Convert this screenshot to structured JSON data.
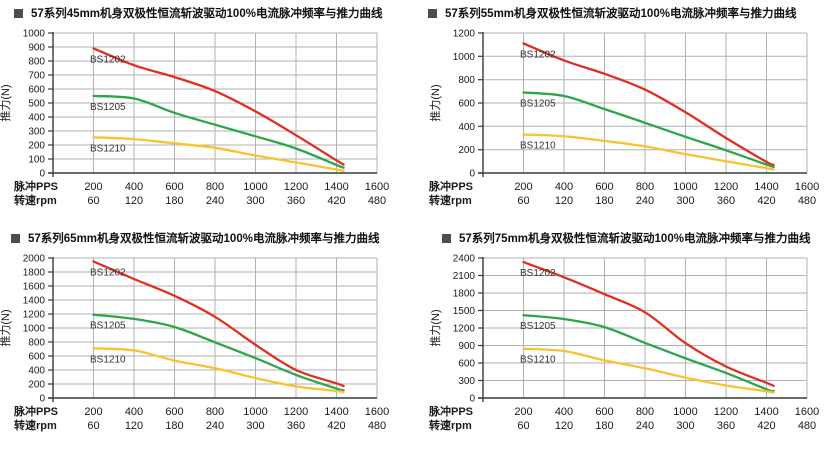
{
  "page": {
    "background": "#ffffff"
  },
  "colors": {
    "red": "#e12e22",
    "green": "#2ca54c",
    "yellow": "#f8c32e",
    "grid": "#b2b2b2",
    "axis": "#3a3a3a",
    "text": "#1a1a1a",
    "series_label": "#333333",
    "bullet": "#4d4d4d"
  },
  "axis_labels": {
    "y_title": "推力(N)",
    "x_row1_header": "脉冲PPS",
    "x_row2_header": "转速rpm"
  },
  "x_ticks_pps": [
    200,
    400,
    600,
    800,
    1000,
    1200,
    1400,
    1600
  ],
  "x_ticks_rpm": [
    60,
    120,
    180,
    240,
    300,
    360,
    420,
    480
  ],
  "chart_data": [
    {
      "type": "line",
      "title": "57系列45mm机身双极性恒流斩波驱动100%电流脉冲频率与推力曲线",
      "xlabel_row1": "脉冲PPS",
      "xlabel_row2": "转速rpm",
      "ylabel": "推力(N)",
      "xlim": [
        0,
        1600
      ],
      "ylim": [
        0,
        1000
      ],
      "ystep": 100,
      "grid": true,
      "legend_position": "inline-left",
      "x": [
        200,
        400,
        600,
        800,
        1000,
        1200,
        1400,
        1435
      ],
      "series": [
        {
          "name": "BS1202",
          "color_key": "red",
          "values": [
            890,
            770,
            685,
            585,
            440,
            270,
            90,
            60
          ]
        },
        {
          "name": "BS1205",
          "color_key": "green",
          "values": [
            550,
            532,
            430,
            345,
            262,
            175,
            57,
            38
          ]
        },
        {
          "name": "BS1210",
          "color_key": "yellow",
          "values": [
            255,
            242,
            212,
            180,
            125,
            75,
            25,
            15
          ]
        }
      ],
      "layout": {
        "plot_left": 53,
        "title_left": 14
      }
    },
    {
      "type": "line",
      "title": "57系列55mm机身双极性恒流斩波驱动100%电流脉冲频率与推力曲线",
      "xlabel_row1": "脉冲PPS",
      "xlabel_row2": "转速rpm",
      "ylabel": "推力(N)",
      "xlim": [
        0,
        1600
      ],
      "ylim": [
        0,
        1200
      ],
      "ystep": 200,
      "grid": true,
      "legend_position": "inline-left",
      "x": [
        200,
        400,
        600,
        800,
        1000,
        1200,
        1400,
        1435
      ],
      "series": [
        {
          "name": "BS1202",
          "color_key": "red",
          "values": [
            1110,
            965,
            850,
            715,
            520,
            300,
            95,
            70
          ]
        },
        {
          "name": "BS1205",
          "color_key": "green",
          "values": [
            690,
            660,
            548,
            430,
            310,
            195,
            72,
            52
          ]
        },
        {
          "name": "BS1210",
          "color_key": "yellow",
          "values": [
            330,
            315,
            275,
            228,
            162,
            100,
            42,
            30
          ]
        }
      ],
      "layout": {
        "plot_left": 68,
        "title_left": 13
      }
    },
    {
      "type": "line",
      "title": "57系列65mm机身双极性恒流斩波驱动100%电流脉冲频率与推力曲线",
      "xlabel_row1": "脉冲PPS",
      "xlabel_row2": "转速rpm",
      "ylabel": "推力(N)",
      "xlim": [
        0,
        1600
      ],
      "ylim": [
        0,
        2000
      ],
      "ystep": 200,
      "grid": true,
      "legend_position": "inline-left",
      "x": [
        200,
        400,
        600,
        800,
        1000,
        1200,
        1400,
        1435
      ],
      "series": [
        {
          "name": "BS1202",
          "color_key": "red",
          "values": [
            1950,
            1700,
            1460,
            1160,
            760,
            400,
            210,
            170
          ]
        },
        {
          "name": "BS1205",
          "color_key": "green",
          "values": [
            1190,
            1130,
            1015,
            795,
            570,
            330,
            135,
            110
          ]
        },
        {
          "name": "BS1210",
          "color_key": "yellow",
          "values": [
            710,
            680,
            535,
            425,
            285,
            165,
            100,
            85
          ]
        }
      ],
      "layout": {
        "plot_left": 53,
        "title_left": 11
      }
    },
    {
      "type": "line",
      "title": "57系列75mm机身双极性恒流斩波驱动100%电流脉冲频率与推力曲线",
      "xlabel_row1": "脉冲PPS",
      "xlabel_row2": "转速rpm",
      "ylabel": "推力(N)",
      "xlim": [
        0,
        1600
      ],
      "ylim": [
        0,
        2400
      ],
      "ystep": 300,
      "grid": true,
      "legend_position": "inline-left",
      "x": [
        200,
        400,
        600,
        800,
        1000,
        1200,
        1400,
        1435
      ],
      "series": [
        {
          "name": "BS1202",
          "color_key": "red",
          "values": [
            2330,
            2070,
            1780,
            1470,
            940,
            540,
            260,
            210
          ]
        },
        {
          "name": "BS1205",
          "color_key": "green",
          "values": [
            1420,
            1355,
            1215,
            945,
            680,
            430,
            150,
            120
          ]
        },
        {
          "name": "BS1210",
          "color_key": "yellow",
          "values": [
            845,
            805,
            645,
            510,
            350,
            215,
            115,
            95
          ]
        }
      ],
      "layout": {
        "plot_left": 68,
        "title_left": 27
      }
    }
  ]
}
